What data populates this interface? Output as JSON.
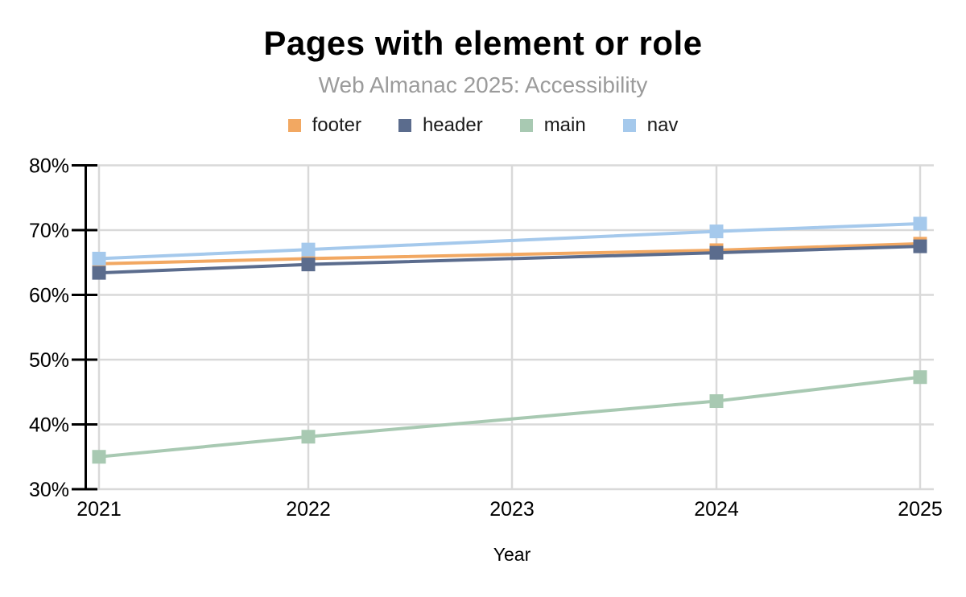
{
  "chart_data": {
    "type": "line",
    "title": "Pages with element or role",
    "subtitle": "Web Almanac 2025: Accessibility",
    "xlabel": "Year",
    "categories": [
      "2021",
      "2022",
      "2023",
      "2024",
      "2025"
    ],
    "y_ticks": [
      "80%",
      "70%",
      "60%",
      "50%",
      "40%",
      "30%"
    ],
    "y_tick_values": [
      80,
      70,
      60,
      50,
      40,
      30
    ],
    "ylim": [
      30,
      80
    ],
    "grid": true,
    "legend_position": "top",
    "marker_shape": "square",
    "missing_years": [
      2023
    ],
    "series": [
      {
        "name": "footer",
        "color": "#F2A862",
        "x": [
          2021,
          2022,
          2024,
          2025
        ],
        "values": [
          64.8,
          65.6,
          66.9,
          67.9
        ]
      },
      {
        "name": "header",
        "color": "#5B6C8D",
        "x": [
          2021,
          2022,
          2024,
          2025
        ],
        "values": [
          63.4,
          64.7,
          66.5,
          67.5
        ]
      },
      {
        "name": "main",
        "color": "#A8C9B2",
        "x": [
          2021,
          2022,
          2024,
          2025
        ],
        "values": [
          35.0,
          38.1,
          43.6,
          47.3
        ]
      },
      {
        "name": "nav",
        "color": "#A5C9EC",
        "x": [
          2021,
          2022,
          2024,
          2025
        ],
        "values": [
          65.6,
          67.0,
          69.8,
          71.0
        ]
      }
    ],
    "axis_color": "#000000",
    "gridline_color": "#d9d9d9"
  }
}
